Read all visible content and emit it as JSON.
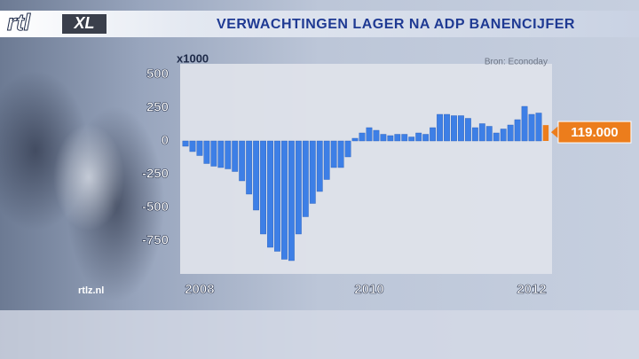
{
  "header": {
    "logo": "rtl",
    "logo_badge": "XL"
  },
  "footer": {
    "site": "rtlz.nl"
  },
  "chart_data": {
    "type": "bar",
    "title": "VERWACHTINGEN LAGER NA ADP BANENCIJFER",
    "y_label": "x1000",
    "source": "Bron: Econoday",
    "categories": [
      null,
      null,
      "2008",
      null,
      null,
      null,
      null,
      null,
      null,
      null,
      null,
      null,
      null,
      null,
      null,
      null,
      null,
      null,
      null,
      null,
      null,
      null,
      null,
      null,
      null,
      null,
      "2010",
      null,
      null,
      null,
      null,
      null,
      null,
      null,
      null,
      null,
      null,
      null,
      null,
      null,
      null,
      null,
      null,
      null,
      null,
      null,
      null,
      null,
      null,
      "2012",
      null,
      null
    ],
    "values": [
      -40,
      -80,
      -110,
      -170,
      -190,
      -200,
      -210,
      -230,
      -300,
      -400,
      -520,
      -700,
      -800,
      -830,
      -890,
      -900,
      -700,
      -570,
      -470,
      -380,
      -290,
      -200,
      -200,
      -120,
      20,
      60,
      100,
      80,
      50,
      40,
      50,
      50,
      30,
      60,
      50,
      100,
      200,
      200,
      190,
      190,
      170,
      100,
      130,
      110,
      60,
      90,
      120,
      160,
      260,
      200,
      210,
      119
    ],
    "value_labels": [
      null,
      null,
      null,
      null,
      null,
      null,
      null,
      null,
      null,
      null,
      null,
      null,
      null,
      null,
      null,
      null,
      null,
      null,
      null,
      null,
      null,
      null,
      null,
      null,
      null,
      null,
      null,
      null,
      null,
      null,
      null,
      null,
      null,
      null,
      null,
      null,
      null,
      null,
      null,
      null,
      null,
      null,
      null,
      null,
      null,
      null,
      null,
      null,
      null,
      null,
      null,
      "119.000"
    ],
    "color": "#3d7fe6",
    "highlight_color": "#ec7d1c",
    "ylim": [
      -1000,
      580
    ],
    "yticks": [
      500,
      250,
      0,
      -250,
      -500,
      -750
    ],
    "grid": false
  }
}
